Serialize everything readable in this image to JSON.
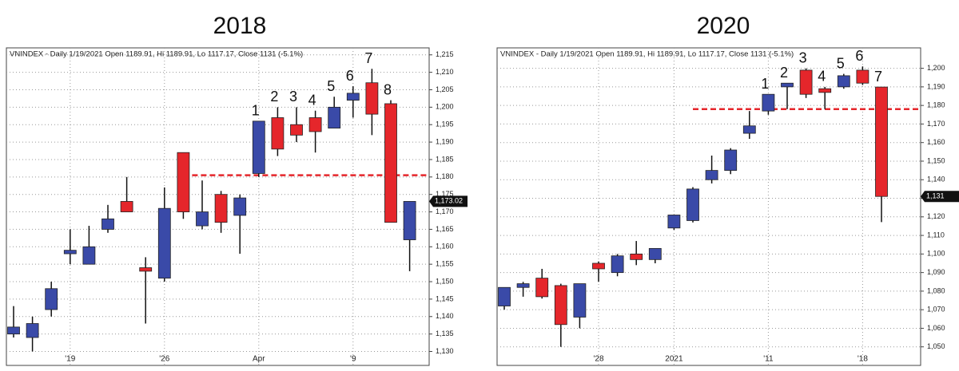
{
  "chart_data": [
    {
      "type": "candlestick",
      "title": "2018",
      "subtitle": "VNINDEX - Daily 1/19/2021 Open 1189.91, Hi 1189.91, Lo 1117.17, Close 1131 (-5.1%)",
      "categories": [
        null,
        null,
        null,
        "'19",
        null,
        null,
        null,
        null,
        "'26",
        null,
        null,
        null,
        null,
        "Apr",
        null,
        null,
        null,
        null,
        "'9",
        null,
        null,
        null
      ],
      "open": [
        1135,
        1134,
        1142,
        1158,
        1155,
        1165,
        1173,
        1154,
        1151,
        1187,
        1166,
        1175,
        1169,
        1181,
        1197,
        1195,
        1197,
        1194,
        1202,
        1207,
        1201,
        1162
      ],
      "high": [
        1143,
        1140,
        1150,
        1165,
        1166,
        1172,
        1180,
        1157,
        1177,
        1187,
        1179,
        1176,
        1175,
        1196,
        1200,
        1200,
        1199,
        1203,
        1206,
        1211,
        1202,
        1173
      ],
      "low": [
        1134,
        1130,
        1140,
        1155,
        1155,
        1164,
        1170,
        1138,
        1150,
        1168,
        1165,
        1164,
        1158,
        1180,
        1186,
        1190,
        1187,
        1194,
        1197,
        1192,
        1167,
        1153
      ],
      "close": [
        1137,
        1138,
        1148,
        1159,
        1160,
        1168,
        1170,
        1153,
        1171,
        1170,
        1170,
        1167,
        1174,
        1196,
        1188,
        1192,
        1193,
        1200,
        1204,
        1198,
        1167,
        1173
      ],
      "annotations": [
        null,
        null,
        null,
        null,
        null,
        null,
        null,
        null,
        null,
        null,
        null,
        null,
        null,
        "1",
        "2",
        "3",
        "4",
        "5",
        "6",
        "7",
        "8",
        null
      ],
      "up_color": "#3a4aa8",
      "down_color": "#e5262b",
      "reference_line": {
        "value": 1180.5,
        "color": "#e5262b"
      },
      "last_price": {
        "value": 1173.02,
        "label": "1,173.02"
      },
      "ylim": [
        1126,
        1217
      ],
      "yticks": [
        {
          "value": 1130,
          "label": "1,130"
        },
        {
          "value": 1135,
          "label": "1,135"
        },
        {
          "value": 1140,
          "label": "1,140"
        },
        {
          "value": 1145,
          "label": "1,145"
        },
        {
          "value": 1150,
          "label": "1,150"
        },
        {
          "value": 1155,
          "label": "1,155"
        },
        {
          "value": 1160,
          "label": "1,160"
        },
        {
          "value": 1165,
          "label": "1,165"
        },
        {
          "value": 1170,
          "label": "1,170"
        },
        {
          "value": 1175,
          "label": "1,175"
        },
        {
          "value": 1180,
          "label": "1,180"
        },
        {
          "value": 1185,
          "label": "1,185"
        },
        {
          "value": 1190,
          "label": "1,190"
        },
        {
          "value": 1195,
          "label": "1,195"
        },
        {
          "value": 1200,
          "label": "1,200"
        },
        {
          "value": 1205,
          "label": "1,205"
        },
        {
          "value": 1210,
          "label": "1,210"
        },
        {
          "value": 1215,
          "label": "1,215"
        }
      ],
      "grid": true
    },
    {
      "type": "candlestick",
      "title": "2020",
      "subtitle": "VNINDEX - Daily 1/19/2021 Open 1189.91, Hi 1189.91, Lo 1117.17, Close 1131 (-5.1%)",
      "categories": [
        null,
        null,
        null,
        null,
        null,
        "'28",
        null,
        null,
        null,
        "2021",
        null,
        null,
        null,
        null,
        "'11",
        null,
        null,
        null,
        null,
        "'18",
        null
      ],
      "open": [
        1072,
        1082,
        1087,
        1083,
        1066,
        1095,
        1090,
        1100,
        1097,
        1114,
        1118,
        1140,
        1145,
        1165,
        1177,
        1190,
        1199,
        1189,
        1190,
        1199,
        1189.91
      ],
      "high": [
        1082,
        1085,
        1092,
        1084,
        1084,
        1096,
        1100,
        1107,
        1103,
        1121,
        1136,
        1153,
        1157,
        1177,
        1186,
        1192,
        1200,
        1190,
        1197,
        1201,
        1189.91
      ],
      "low": [
        1070,
        1077,
        1076,
        1050,
        1060,
        1085,
        1088,
        1094,
        1095,
        1113,
        1117,
        1138,
        1143,
        1162,
        1175,
        1178,
        1184,
        1178,
        1189,
        1191,
        1117.17
      ],
      "close": [
        1082,
        1084,
        1077,
        1062,
        1084,
        1092,
        1099,
        1097,
        1103,
        1121,
        1135,
        1145,
        1156,
        1169,
        1186,
        1192,
        1186,
        1187,
        1196,
        1192,
        1131
      ],
      "annotations": [
        null,
        null,
        null,
        null,
        null,
        null,
        null,
        null,
        null,
        null,
        null,
        null,
        null,
        null,
        "1",
        "2",
        "3",
        "4",
        "5",
        "6",
        "7"
      ],
      "up_color": "#3a4aa8",
      "down_color": "#e5262b",
      "reference_line": {
        "value": 1178,
        "color": "#e5262b"
      },
      "last_price": {
        "value": 1131,
        "label": "1,131"
      },
      "ylim": [
        1040,
        1211
      ],
      "yticks": [
        {
          "value": 1050,
          "label": "1,050"
        },
        {
          "value": 1060,
          "label": "1,060"
        },
        {
          "value": 1070,
          "label": "1,070"
        },
        {
          "value": 1080,
          "label": "1,080"
        },
        {
          "value": 1090,
          "label": "1,090"
        },
        {
          "value": 1100,
          "label": "1,100"
        },
        {
          "value": 1110,
          "label": "1,110"
        },
        {
          "value": 1120,
          "label": "1,120"
        },
        {
          "value": 1130,
          "label": "1,130"
        },
        {
          "value": 1140,
          "label": "1,140"
        },
        {
          "value": 1150,
          "label": "1,150"
        },
        {
          "value": 1160,
          "label": "1,160"
        },
        {
          "value": 1170,
          "label": "1,170"
        },
        {
          "value": 1180,
          "label": "1,180"
        },
        {
          "value": 1190,
          "label": "1,190"
        },
        {
          "value": 1200,
          "label": "1,200"
        }
      ],
      "grid": true
    }
  ]
}
